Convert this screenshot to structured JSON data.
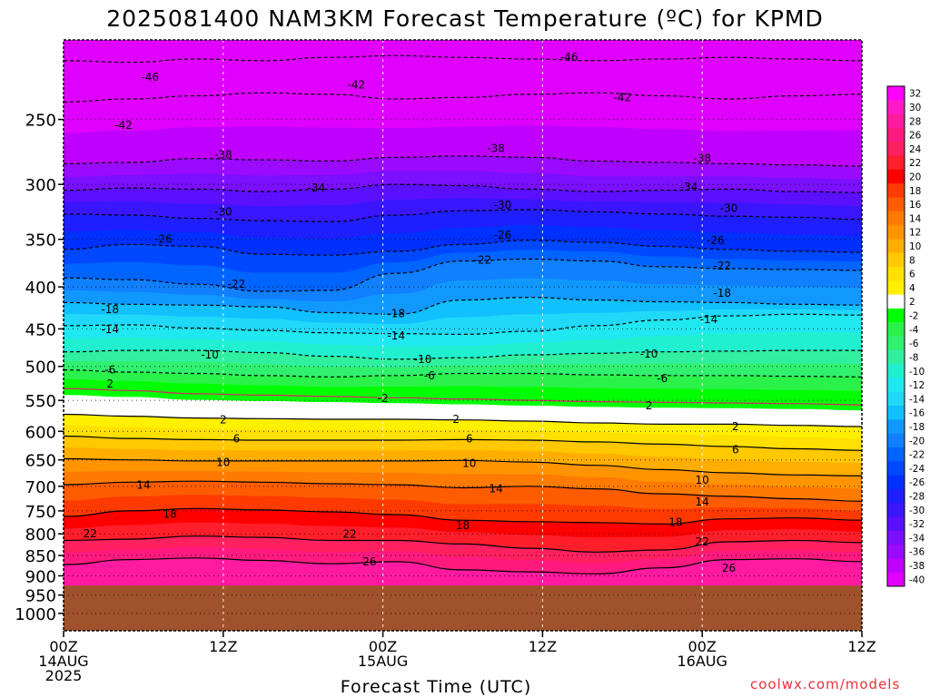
{
  "chart_data": {
    "type": "heatmap",
    "title": "2025081400 NAM3KM Forecast Temperature (ºC) for KPMD",
    "xlabel": "Forecast Time (UTC)",
    "ylabel": "",
    "credit": "coolwx.com/models",
    "y_axis": {
      "scale": "log-pressure",
      "ylim": [
        1050,
        200
      ],
      "ticks": [
        250,
        300,
        350,
        400,
        450,
        500,
        550,
        600,
        650,
        700,
        750,
        800,
        850,
        900,
        950,
        1000
      ]
    },
    "x_axis": {
      "range_hours": [
        0,
        60
      ],
      "ticks": [
        {
          "h": 0,
          "lines": [
            "00Z",
            "14AUG",
            "2025"
          ]
        },
        {
          "h": 12,
          "lines": [
            "12Z"
          ]
        },
        {
          "h": 24,
          "lines": [
            "00Z",
            "15AUG"
          ]
        },
        {
          "h": 36,
          "lines": [
            "12Z"
          ]
        },
        {
          "h": 48,
          "lines": [
            "00Z",
            "16AUG"
          ]
        },
        {
          "h": 60,
          "lines": [
            "12Z"
          ]
        }
      ]
    },
    "ground_pressure": 925,
    "ground_color": "#a0522d",
    "grid": true,
    "colorbar": {
      "placement": "right",
      "labels": [
        "32",
        "30",
        "28",
        "26",
        "24",
        "22",
        "20",
        "18",
        "16",
        "14",
        "12",
        "10",
        "8",
        "6",
        "4",
        "2",
        "-2",
        "-4",
        "-6",
        "-8",
        "-10",
        "-12",
        "-14",
        "-16",
        "-18",
        "-20",
        "-22",
        "-24",
        "-26",
        "-28",
        "-30",
        "-32",
        "-34",
        "-36",
        "-38",
        "-40"
      ],
      "colors": [
        "#ff00ff",
        "#ff1ac8",
        "#ff1aa0",
        "#ff1a80",
        "#ff2060",
        "#ff1e2a",
        "#ff0000",
        "#ff3a00",
        "#ff5c00",
        "#ff7a00",
        "#ff9400",
        "#ffae00",
        "#ffc800",
        "#ffe000",
        "#fff000",
        "#ffffff",
        "#00ff00",
        "#2af24a",
        "#30f070",
        "#30f0a0",
        "#20f0d0",
        "#20e8f0",
        "#20d8f8",
        "#10c0ff",
        "#1098ff",
        "#1080ff",
        "#0064ff",
        "#0048ff",
        "#0030ff",
        "#1e1eff",
        "#3a16ff",
        "#5a10ff",
        "#7a10ff",
        "#9a0aff",
        "#c000ff",
        "#e000ff"
      ]
    },
    "isotherms": [
      {
        "value": -46,
        "label": "-46",
        "p": [
          212,
          213,
          211,
          212,
          210,
          209,
          210,
          211,
          212,
          211,
          210,
          211,
          212
        ]
      },
      {
        "value": -42,
        "label": "-42",
        "p": [
          238,
          236,
          234,
          232,
          233,
          236,
          235,
          233,
          232,
          234,
          236,
          234,
          233
        ]
      },
      {
        "value": -38,
        "label": "-38",
        "p": [
          283,
          282,
          279,
          280,
          281,
          278,
          277,
          278,
          281,
          282,
          283,
          284,
          285
        ]
      },
      {
        "value": -34,
        "label": "-34",
        "p": [
          305,
          303,
          304,
          306,
          304,
          300,
          301,
          304,
          306,
          305,
          304,
          306,
          307
        ]
      },
      {
        "value": -30,
        "label": "-30",
        "p": [
          326,
          327,
          330,
          332,
          333,
          327,
          323,
          322,
          324,
          326,
          328,
          329,
          331
        ]
      },
      {
        "value": -26,
        "label": "-26",
        "p": [
          360,
          355,
          357,
          365,
          366,
          362,
          355,
          351,
          353,
          357,
          360,
          362,
          363
        ]
      },
      {
        "value": -22,
        "label": "-22",
        "p": [
          390,
          392,
          397,
          405,
          404,
          385,
          372,
          370,
          372,
          378,
          380,
          381,
          382
        ]
      },
      {
        "value": -18,
        "label": "-18",
        "p": [
          418,
          420,
          421,
          423,
          430,
          432,
          415,
          412,
          415,
          417,
          418,
          420,
          421
        ]
      },
      {
        "value": -14,
        "label": "-14",
        "p": [
          446,
          445,
          449,
          452,
          455,
          456,
          457,
          453,
          446,
          439,
          434,
          432,
          433
        ]
      },
      {
        "value": -10,
        "label": "-10",
        "p": [
          480,
          478,
          478,
          481,
          486,
          490,
          488,
          484,
          482,
          480,
          479,
          478,
          478
        ]
      },
      {
        "value": -6,
        "label": "-6",
        "p": [
          505,
          508,
          510,
          513,
          515,
          513,
          510,
          510,
          512,
          513,
          513,
          514,
          515
        ]
      },
      {
        "value": -2,
        "label": "-2",
        "p": [
          532,
          535,
          540,
          542,
          544,
          546,
          548,
          550,
          552,
          553,
          554,
          555,
          557
        ]
      },
      {
        "value": 2,
        "label": "2",
        "p": [
          572,
          575,
          578,
          579,
          580,
          580,
          581,
          583,
          586,
          588,
          588,
          590,
          592
        ]
      },
      {
        "value": 6,
        "label": "6",
        "p": [
          608,
          612,
          614,
          615,
          615,
          615,
          614,
          615,
          618,
          622,
          626,
          630,
          633
        ]
      },
      {
        "value": 10,
        "label": "10",
        "p": [
          648,
          650,
          652,
          652,
          652,
          652,
          651,
          654,
          660,
          668,
          674,
          678,
          680
        ]
      },
      {
        "value": 14,
        "label": "14",
        "p": [
          697,
          692,
          690,
          692,
          695,
          697,
          703,
          700,
          705,
          715,
          720,
          725,
          730
        ]
      },
      {
        "value": 18,
        "label": "18",
        "p": [
          762,
          750,
          745,
          748,
          752,
          758,
          770,
          773,
          775,
          778,
          767,
          765,
          770
        ]
      },
      {
        "value": 22,
        "label": "22",
        "p": [
          815,
          812,
          805,
          808,
          815,
          815,
          823,
          833,
          842,
          837,
          818,
          815,
          820
        ]
      },
      {
        "value": 26,
        "label": "26",
        "p": [
          872,
          860,
          856,
          862,
          870,
          865,
          885,
          890,
          895,
          880,
          860,
          858,
          865
        ]
      }
    ],
    "contour_labels": [
      {
        "text": "-46",
        "h": 38,
        "p": 210
      },
      {
        "text": "-46",
        "h": 6.5,
        "p": 222
      },
      {
        "text": "-42",
        "h": 22,
        "p": 227
      },
      {
        "text": "-42",
        "h": 42,
        "p": 235
      },
      {
        "text": "-42",
        "h": 4.5,
        "p": 254
      },
      {
        "text": "-38",
        "h": 12,
        "p": 276
      },
      {
        "text": "-38",
        "h": 32.5,
        "p": 271
      },
      {
        "text": "-38",
        "h": 48,
        "p": 279
      },
      {
        "text": "-34",
        "h": 19,
        "p": 303
      },
      {
        "text": "-34",
        "h": 47,
        "p": 302
      },
      {
        "text": "-30",
        "h": 12,
        "p": 324
      },
      {
        "text": "-30",
        "h": 33,
        "p": 318
      },
      {
        "text": "-30",
        "h": 50,
        "p": 321
      },
      {
        "text": "-26",
        "h": 7.5,
        "p": 350
      },
      {
        "text": "-26",
        "h": 33,
        "p": 346
      },
      {
        "text": "-26",
        "h": 49,
        "p": 351
      },
      {
        "text": "-22",
        "h": 31.5,
        "p": 371
      },
      {
        "text": "-22",
        "h": 13,
        "p": 397
      },
      {
        "text": "-22",
        "h": 49.5,
        "p": 377
      },
      {
        "text": "-18",
        "h": 3.5,
        "p": 426
      },
      {
        "text": "-18",
        "h": 49.5,
        "p": 407
      },
      {
        "text": "-18",
        "h": 25,
        "p": 431
      },
      {
        "text": "-14",
        "h": 3.5,
        "p": 451
      },
      {
        "text": "-14",
        "h": 48.5,
        "p": 438
      },
      {
        "text": "-14",
        "h": 25,
        "p": 459
      },
      {
        "text": "-10",
        "h": 11,
        "p": 484
      },
      {
        "text": "-10",
        "h": 27,
        "p": 490
      },
      {
        "text": "-10",
        "h": 44,
        "p": 483
      },
      {
        "text": "-6",
        "h": 3.5,
        "p": 505
      },
      {
        "text": "-6",
        "h": 27.5,
        "p": 513
      },
      {
        "text": "-6",
        "h": 45,
        "p": 517
      },
      {
        "text": "-2",
        "h": 24,
        "p": 547
      },
      {
        "text": "2",
        "h": 3.5,
        "p": 525
      },
      {
        "text": "2",
        "h": 12,
        "p": 581
      },
      {
        "text": "2",
        "h": 29.5,
        "p": 580
      },
      {
        "text": "2",
        "h": 44,
        "p": 558
      },
      {
        "text": "2",
        "h": 50.5,
        "p": 592
      },
      {
        "text": "6",
        "h": 13,
        "p": 613
      },
      {
        "text": "6",
        "h": 30.5,
        "p": 613
      },
      {
        "text": "6",
        "h": 50.5,
        "p": 632
      },
      {
        "text": "10",
        "h": 12,
        "p": 655
      },
      {
        "text": "10",
        "h": 30.5,
        "p": 656
      },
      {
        "text": "10",
        "h": 48,
        "p": 688
      },
      {
        "text": "14",
        "h": 6,
        "p": 698
      },
      {
        "text": "14",
        "h": 32.5,
        "p": 705
      },
      {
        "text": "14",
        "h": 48,
        "p": 731
      },
      {
        "text": "18",
        "h": 8,
        "p": 757
      },
      {
        "text": "18",
        "h": 30,
        "p": 781
      },
      {
        "text": "18",
        "h": 46,
        "p": 774
      },
      {
        "text": "22",
        "h": 2,
        "p": 800
      },
      {
        "text": "22",
        "h": 21.5,
        "p": 801
      },
      {
        "text": "22",
        "h": 48,
        "p": 818
      },
      {
        "text": "26",
        "h": 23,
        "p": 865
      },
      {
        "text": "26",
        "h": 50,
        "p": 881
      }
    ]
  }
}
